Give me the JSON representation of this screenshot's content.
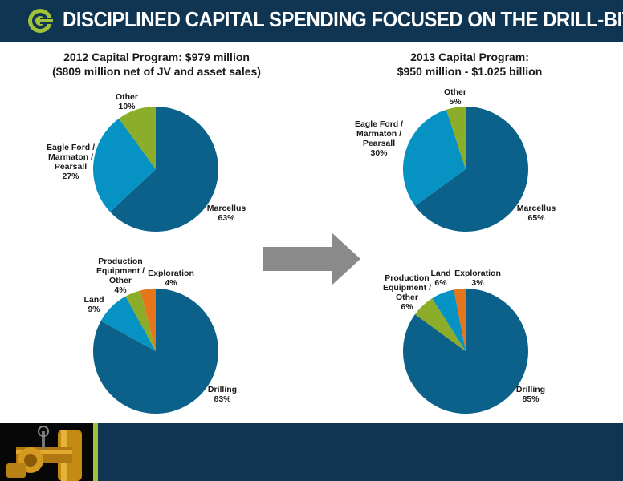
{
  "header": {
    "title": "DISCIPLINED CAPITAL SPENDING FOCUSED ON THE DRILL-BIT"
  },
  "colors": {
    "navy": "#0f3552",
    "marcellus": "#0b6189",
    "eagle": "#0693c3",
    "other": "#8cad2a",
    "exploration": "#e5761c",
    "arrow": "#8a8a8a",
    "accent": "#9fc23a"
  },
  "chart_data": [
    {
      "type": "pie",
      "title": "2012 Capital Program: $979 million",
      "subtitle": "($809 million net of JV and asset sales)",
      "slices": [
        {
          "label": [
            "Marcellus"
          ],
          "pct": "63%",
          "value": 63,
          "color": "#0b6189"
        },
        {
          "label": [
            "Eagle Ford /",
            "Marmaton /",
            "Pearsall"
          ],
          "pct": "27%",
          "value": 27,
          "color": "#0693c3"
        },
        {
          "label": [
            "Other"
          ],
          "pct": "10%",
          "value": 10,
          "color": "#8cad2a"
        }
      ]
    },
    {
      "type": "pie",
      "title": "2013 Capital Program:",
      "subtitle": "$950 million - $1.025 billion",
      "slices": [
        {
          "label": [
            "Marcellus"
          ],
          "pct": "65%",
          "value": 65,
          "color": "#0b6189"
        },
        {
          "label": [
            "Eagle Ford /",
            "Marmaton /",
            "Pearsall"
          ],
          "pct": "30%",
          "value": 30,
          "color": "#0693c3"
        },
        {
          "label": [
            "Other"
          ],
          "pct": "5%",
          "value": 5,
          "color": "#8cad2a"
        }
      ]
    },
    {
      "type": "pie",
      "title": "",
      "slices": [
        {
          "label": [
            "Drilling"
          ],
          "pct": "83%",
          "value": 83,
          "color": "#0b6189"
        },
        {
          "label": [
            "Land"
          ],
          "pct": "9%",
          "value": 9,
          "color": "#0693c3"
        },
        {
          "label": [
            "Production",
            "Equipment /",
            "Other"
          ],
          "pct": "4%",
          "value": 4,
          "color": "#8cad2a"
        },
        {
          "label": [
            "Exploration"
          ],
          "pct": "4%",
          "value": 4,
          "color": "#e5761c"
        }
      ]
    },
    {
      "type": "pie",
      "title": "",
      "slices": [
        {
          "label": [
            "Drilling"
          ],
          "pct": "85%",
          "value": 85,
          "color": "#0b6189"
        },
        {
          "label": [
            "Production",
            "Equipment /",
            "Other"
          ],
          "pct": "6%",
          "value": 6,
          "color": "#8cad2a"
        },
        {
          "label": [
            "Land"
          ],
          "pct": "6%",
          "value": 6,
          "color": "#0693c3"
        },
        {
          "label": [
            "Exploration"
          ],
          "pct": "3%",
          "value": 3,
          "color": "#e5761c"
        }
      ]
    }
  ]
}
